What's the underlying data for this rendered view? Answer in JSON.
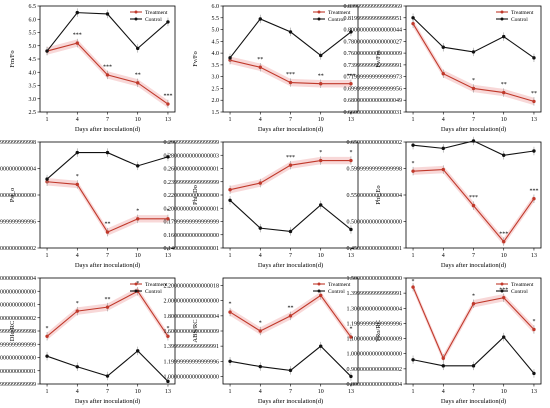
{
  "colors": {
    "treatment": "#c0392b",
    "control": "#111111",
    "band": "#f2b8b8"
  },
  "chart_data": [
    {
      "type": "line",
      "ylabel": "Fm/Fo",
      "xlabel": "Days after inoculation(d)",
      "x": [
        1,
        4,
        7,
        10,
        13
      ],
      "ylim": [
        2.5,
        6.5
      ],
      "yticks": [
        2.5,
        3.0,
        3.5,
        4.0,
        4.5,
        5.0,
        5.5,
        6.0,
        6.5
      ],
      "legend": "top-right",
      "series": [
        {
          "name": "Treatment",
          "values": [
            4.8,
            5.1,
            3.9,
            3.6,
            2.8
          ]
        },
        {
          "name": "Control",
          "values": [
            4.8,
            6.25,
            6.2,
            4.9,
            5.9
          ]
        }
      ],
      "stars": [
        "",
        "***",
        "***",
        "**",
        "***"
      ]
    },
    {
      "type": "line",
      "ylabel": "Fv/Fo",
      "xlabel": "Days after inoculation(d)",
      "x": [
        1,
        4,
        7,
        10,
        13
      ],
      "ylim": [
        1.5,
        6.0
      ],
      "yticks": [
        1.5,
        2.0,
        2.5,
        3.0,
        3.5,
        4.0,
        4.5,
        5.0,
        5.5,
        6.0
      ],
      "legend": "top-right",
      "series": [
        {
          "name": "Treatment",
          "values": [
            3.7,
            3.4,
            2.75,
            2.7,
            2.7
          ]
        },
        {
          "name": "Control",
          "values": [
            3.8,
            5.45,
            4.9,
            3.9,
            4.9
          ]
        }
      ],
      "stars": [
        "",
        "**",
        "***",
        "**",
        "***"
      ]
    },
    {
      "type": "line",
      "ylabel": "Fv/Fm",
      "xlabel": "Days after inoculation(d)",
      "x": [
        1,
        4,
        7,
        10,
        13
      ],
      "ylim": [
        0.66,
        0.84
      ],
      "yticks": [
        0.66,
        0.68,
        0.7,
        0.72,
        0.74,
        0.76,
        0.78,
        0.8,
        0.82,
        0.84
      ],
      "legend": "top-right",
      "series": [
        {
          "name": "Treatment",
          "values": [
            0.81,
            0.725,
            0.7,
            0.693,
            0.678
          ]
        },
        {
          "name": "Control",
          "values": [
            0.82,
            0.77,
            0.762,
            0.788,
            0.752
          ]
        }
      ],
      "stars": [
        "",
        "",
        "*",
        "**",
        "**"
      ]
    },
    {
      "type": "line",
      "ylabel": "Psi_o",
      "xlabel": "Days after inoculation(d)",
      "x": [
        1,
        4,
        7,
        10,
        13
      ],
      "ylim": [
        0.65,
        0.85
      ],
      "yticks": [
        0.65,
        0.7,
        0.75,
        0.8,
        0.85
      ],
      "legend": "none",
      "series": [
        {
          "name": "Treatment",
          "values": [
            0.775,
            0.77,
            0.68,
            0.705,
            0.705
          ]
        },
        {
          "name": "Control",
          "values": [
            0.78,
            0.83,
            0.83,
            0.805,
            0.822
          ]
        }
      ],
      "stars": [
        "",
        "*",
        "**",
        "*",
        "*"
      ]
    },
    {
      "type": "line",
      "ylabel": "Phi_Do",
      "xlabel": "Days after inoculation(d)",
      "x": [
        1,
        4,
        7,
        10,
        13
      ],
      "ylim": [
        0.14,
        0.3
      ],
      "yticks": [
        0.14,
        0.16,
        0.18,
        0.2,
        0.22,
        0.24,
        0.26,
        0.28,
        0.3
      ],
      "legend": "none",
      "series": [
        {
          "name": "Treatment",
          "values": [
            0.228,
            0.238,
            0.265,
            0.272,
            0.272
          ]
        },
        {
          "name": "Control",
          "values": [
            0.212,
            0.17,
            0.165,
            0.205,
            0.168
          ]
        }
      ],
      "stars": [
        "",
        "",
        "***",
        "*",
        "*"
      ]
    },
    {
      "type": "line",
      "ylabel": "Phi_Eo",
      "xlabel": "Days after inoculation(d)",
      "x": [
        1,
        4,
        7,
        10,
        13
      ],
      "ylim": [
        0.45,
        0.65
      ],
      "yticks": [
        0.45,
        0.5,
        0.55,
        0.6,
        0.65
      ],
      "legend": "none",
      "series": [
        {
          "name": "Treatment",
          "values": [
            0.595,
            0.598,
            0.53,
            0.462,
            0.543
          ]
        },
        {
          "name": "Control",
          "values": [
            0.644,
            0.638,
            0.652,
            0.625,
            0.633
          ]
        }
      ],
      "stars": [
        "*",
        "",
        "***",
        "***",
        "***"
      ]
    },
    {
      "type": "line",
      "ylabel": "DIo/RC",
      "xlabel": "Days after inoculation(d)",
      "x": [
        1,
        4,
        7,
        10,
        13
      ],
      "ylim": [
        0.15,
        0.55
      ],
      "yticks": [
        0.15,
        0.2,
        0.25,
        0.3,
        0.35,
        0.4,
        0.45,
        0.5,
        0.55
      ],
      "legend": "top-right",
      "series": [
        {
          "name": "Treatment",
          "values": [
            0.33,
            0.425,
            0.44,
            0.5,
            0.33
          ]
        },
        {
          "name": "Control",
          "values": [
            0.255,
            0.215,
            0.18,
            0.275,
            0.16
          ]
        }
      ],
      "stars": [
        "*",
        "*",
        "**",
        "*",
        "*"
      ]
    },
    {
      "type": "line",
      "ylabel": "ABS/RC",
      "xlabel": "Days after inoculation(d)",
      "x": [
        1,
        4,
        7,
        10,
        13
      ],
      "ylim": [
        0.9,
        2.3
      ],
      "yticks": [
        1.0,
        1.2,
        1.4,
        1.6,
        1.8,
        2.0,
        2.2
      ],
      "legend": "top-right",
      "series": [
        {
          "name": "Treatment",
          "values": [
            1.85,
            1.6,
            1.8,
            2.07,
            1.52
          ]
        },
        {
          "name": "Control",
          "values": [
            1.2,
            1.13,
            1.08,
            1.4,
            1.0
          ]
        }
      ],
      "stars": [
        "*",
        "*",
        "**",
        "",
        "*"
      ]
    },
    {
      "type": "line",
      "ylabel": "TRo/RC",
      "xlabel": "Days after inoculation(d)",
      "x": [
        1,
        4,
        7,
        10,
        13
      ],
      "ylim": [
        0.8,
        1.5
      ],
      "yticks": [
        0.8,
        0.9,
        1.0,
        1.1,
        1.2,
        1.3,
        1.4,
        1.5
      ],
      "legend": "top-right",
      "series": [
        {
          "name": "Treatment",
          "values": [
            1.44,
            0.97,
            1.33,
            1.37,
            1.16
          ]
        },
        {
          "name": "Control",
          "values": [
            0.96,
            0.92,
            0.92,
            1.11,
            0.87
          ]
        }
      ],
      "stars": [
        "*",
        "",
        "*",
        "***",
        "*"
      ]
    }
  ]
}
